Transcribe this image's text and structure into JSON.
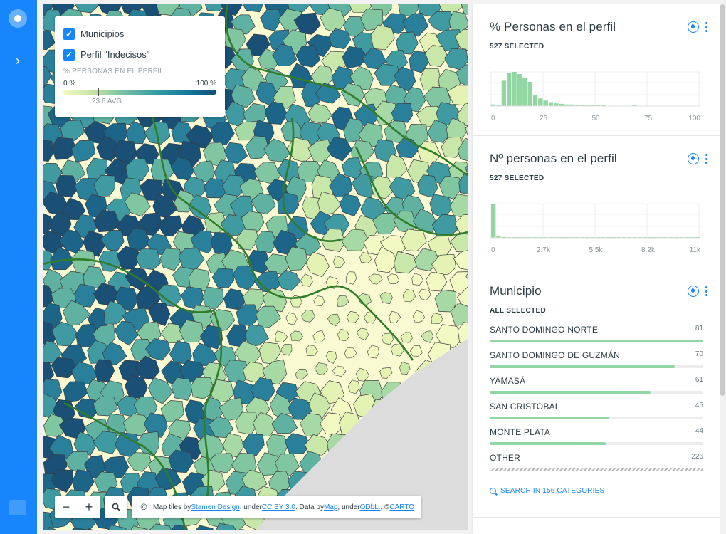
{
  "app": {
    "accent": "#1785fb"
  },
  "legend": {
    "layers": [
      {
        "label": "Municipios",
        "checked": true
      },
      {
        "label": "Perfil \"Indecisos\"",
        "checked": true
      }
    ],
    "title": "% PERSONAS EN EL PERFIL",
    "min_label": "0 %",
    "max_label": "100 %",
    "avg_label": "23.6 AVG",
    "avg_value": 23.6
  },
  "toolbar": {
    "zoom_out": "−",
    "zoom_in": "+",
    "search_icon": "search-icon",
    "copyright": "©",
    "attribution": {
      "part1": "Map tiles by ",
      "link1": "Stamen Design",
      "part2": ", under ",
      "link2": "CC BY 3.0",
      "part3": ". Data by ",
      "link3": "Map",
      "part4": ", under ",
      "link4": "ODbL.",
      "part5": ", © ",
      "link5": "CARTO"
    }
  },
  "widgets": {
    "pct": {
      "title": "% Personas en el perfil",
      "selected": "527 SELECTED",
      "chart_data": {
        "type": "bar",
        "xlim": [
          0,
          100
        ],
        "x_ticks": [
          "0",
          "25",
          "50",
          "75",
          "100"
        ],
        "bin_width": 2.5,
        "bins": [
          0,
          2.5,
          5,
          7.5,
          10,
          12.5,
          15,
          17.5,
          20,
          22.5,
          25,
          27.5,
          30,
          32.5,
          35,
          37.5,
          40,
          42.5,
          45,
          47.5,
          50,
          52.5,
          67.5
        ],
        "values": [
          3,
          2,
          46,
          60,
          62,
          58,
          52,
          44,
          20,
          14,
          10,
          7,
          5,
          4,
          3,
          3,
          2,
          2,
          1,
          1,
          1,
          1,
          1
        ]
      }
    },
    "count": {
      "title": "Nº personas en el perfil",
      "selected": "527 SELECTED",
      "chart_data": {
        "type": "bar",
        "x_ticks": [
          "0",
          "2.7k",
          "5.5k",
          "8.2k",
          "11k"
        ],
        "bins": [
          0,
          1,
          2,
          3,
          4,
          5,
          6,
          7,
          8,
          9,
          10,
          11,
          12,
          13,
          14,
          15,
          16,
          17,
          18,
          19,
          20,
          21,
          22,
          23,
          24,
          25,
          26,
          27,
          28,
          29,
          30,
          31,
          32,
          33,
          34,
          35,
          36,
          37,
          38,
          39
        ],
        "values": [
          470,
          30,
          12,
          6,
          5,
          4,
          3,
          3,
          3,
          3,
          2,
          2,
          2,
          2,
          2,
          2,
          2,
          2,
          2,
          1,
          0,
          0,
          0,
          0,
          0,
          0,
          0,
          0,
          0,
          0,
          0,
          0,
          0,
          0,
          0,
          0,
          0,
          0,
          1,
          1
        ]
      }
    },
    "municipio": {
      "title": "Municipio",
      "selected": "ALL SELECTED",
      "max": 226,
      "categories": [
        {
          "name": "SANTO DOMINGO NORTE",
          "value": "81",
          "fraction": 1.0
        },
        {
          "name": "SANTO DOMINGO DE GUZMÁN",
          "value": "70",
          "fraction": 0.865
        },
        {
          "name": "YAMASÁ",
          "value": "61",
          "fraction": 0.754
        },
        {
          "name": "SAN CRISTÓBAL",
          "value": "45",
          "fraction": 0.556
        },
        {
          "name": "MONTE PLATA",
          "value": "44",
          "fraction": 0.543
        },
        {
          "name": "OTHER",
          "value": "226",
          "fraction": 1.0
        }
      ],
      "search_label": "SEARCH IN 156 CATEGORIES"
    }
  }
}
